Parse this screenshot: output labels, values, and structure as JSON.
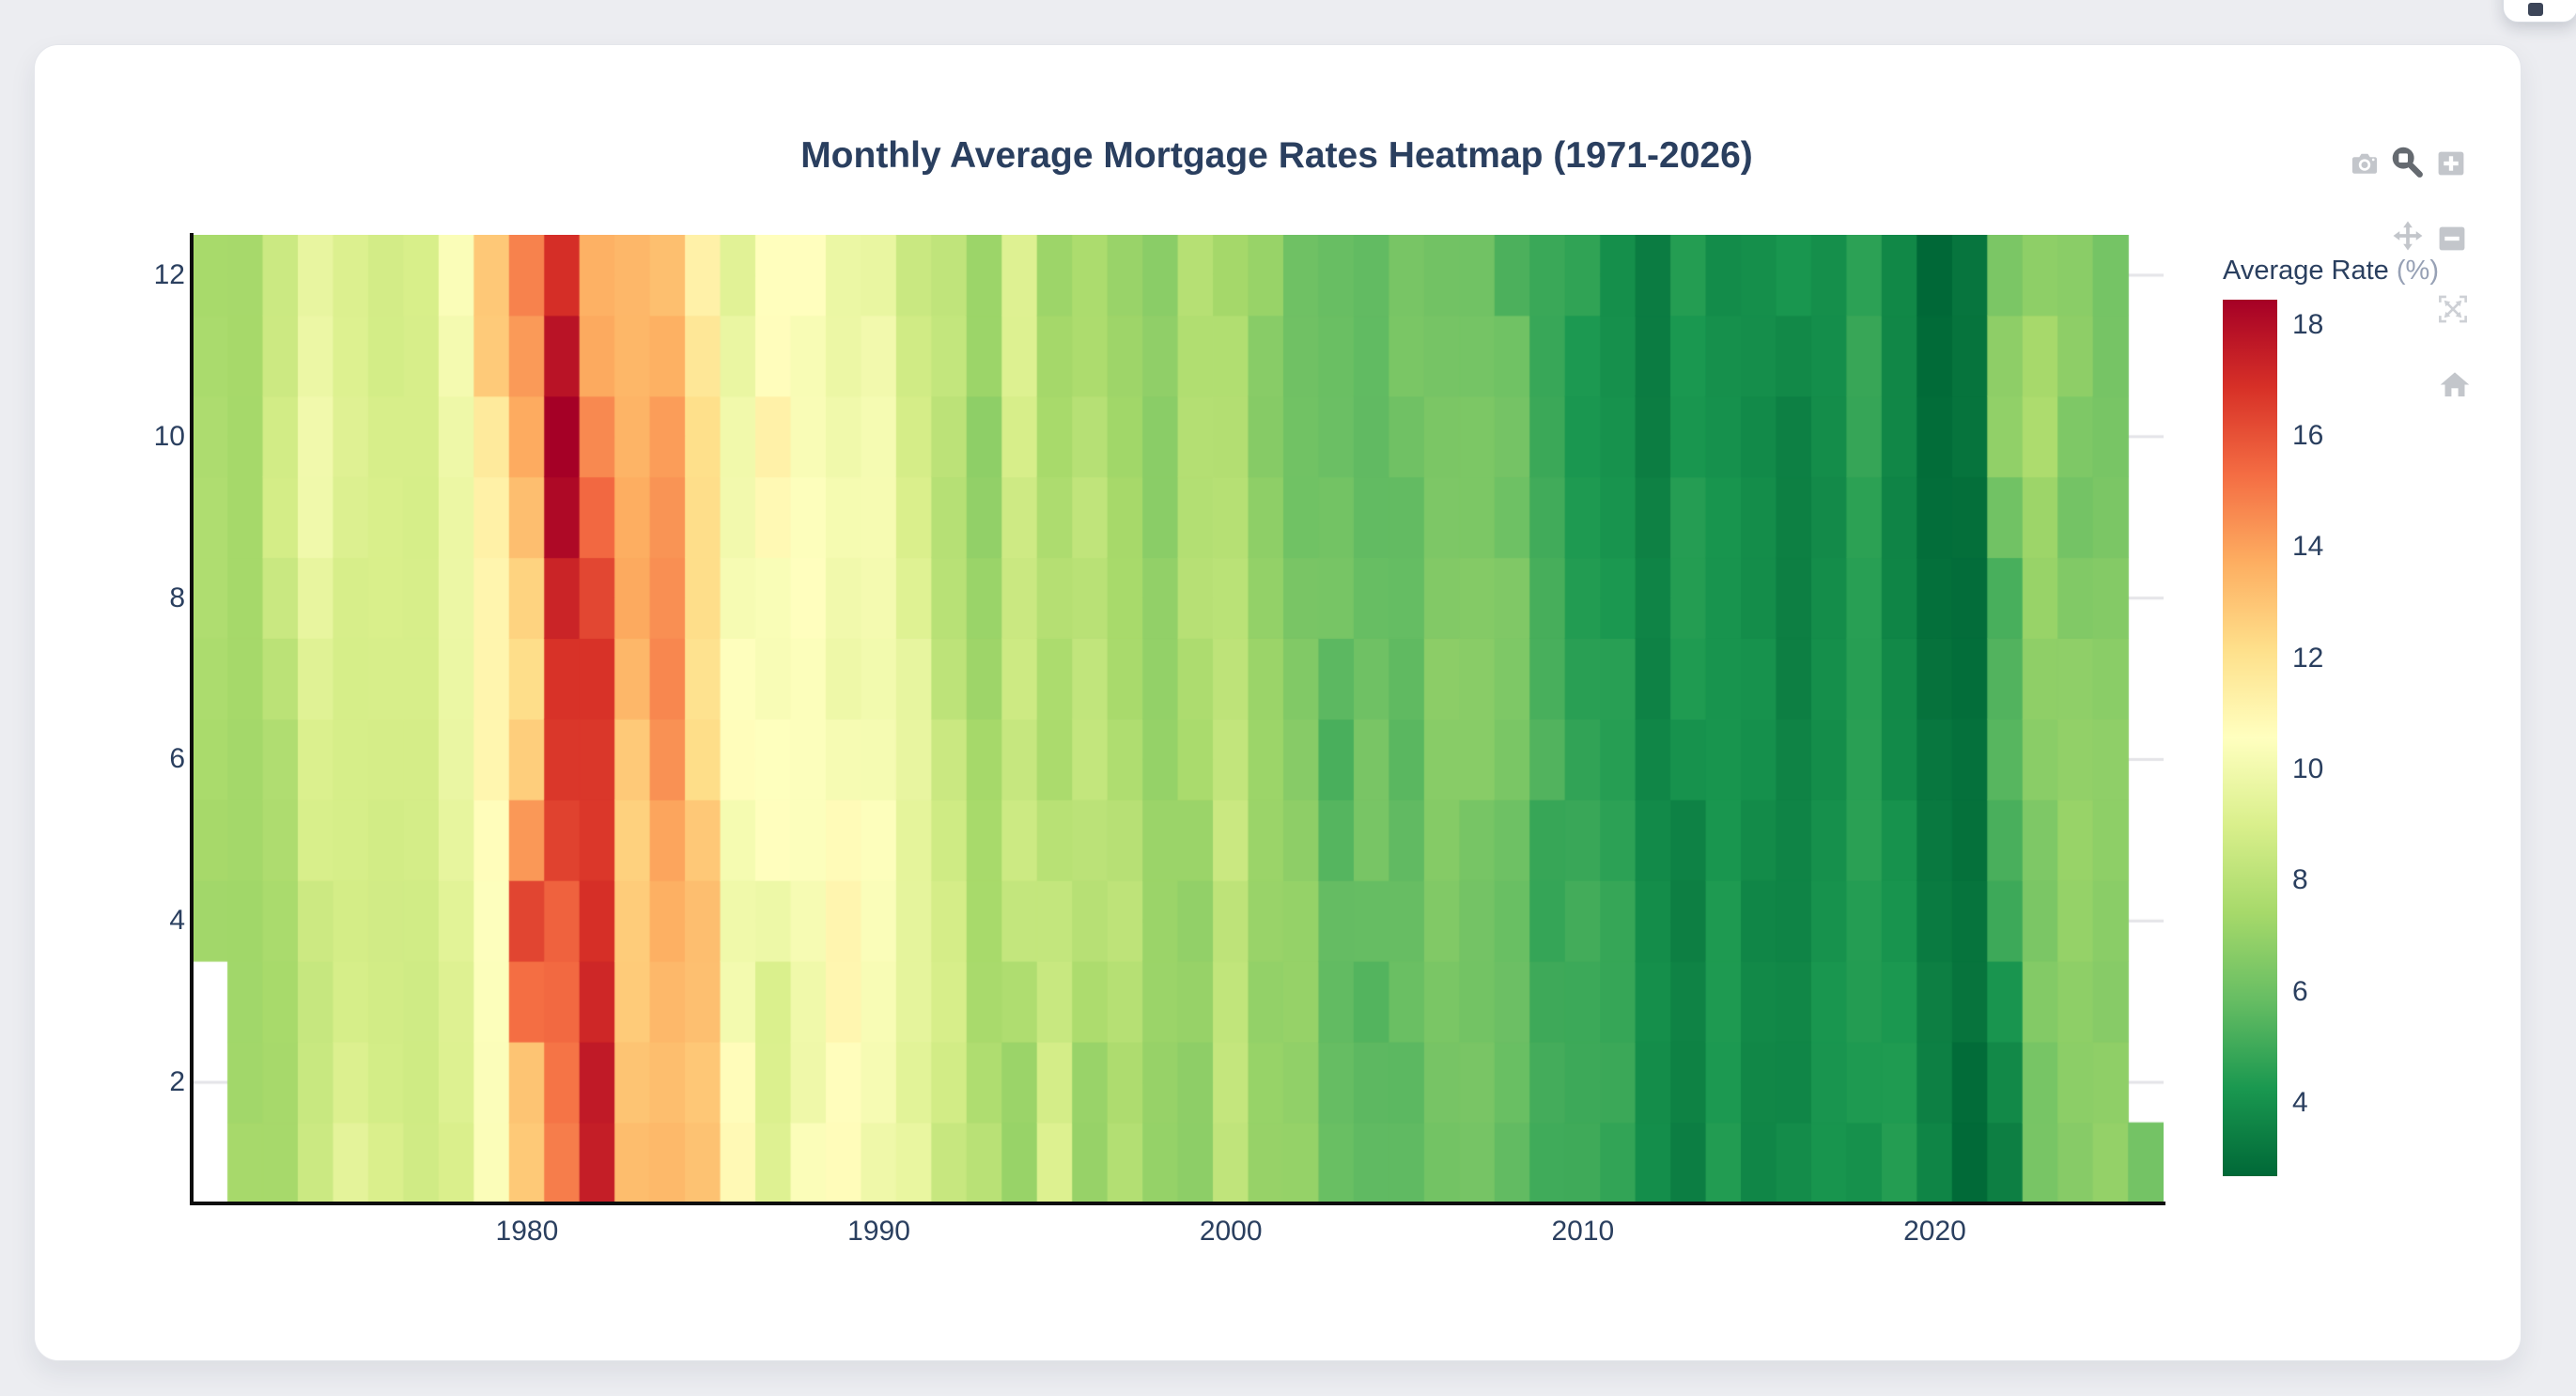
{
  "header": {
    "title": "Monthly Average Mortgage Rates Heatmap (1971-2026)"
  },
  "modebar": {
    "buttons": [
      "download-png",
      "zoom",
      "zoom-in",
      "pan",
      "zoom-out",
      "autoscale",
      "reset-axes-home"
    ],
    "inactive_color": "#c3c6cb",
    "active_color": "#656a70"
  },
  "floating_button": {
    "label": ""
  },
  "chart_data": {
    "type": "heatmap",
    "title": "Monthly Average Mortgage Rates Heatmap (1971-2026)",
    "xlabel": "",
    "ylabel": "",
    "x_year_min": 1971,
    "x_year_max": 2026,
    "y_month_min": 1,
    "y_month_max": 12,
    "xticks": [
      1980,
      1990,
      2000,
      2010,
      2020
    ],
    "yticks": [
      2,
      4,
      6,
      8,
      10,
      12
    ],
    "zmin": 2.68,
    "zmax": 18.45,
    "grid_color": "#e4e4e8",
    "axis_line_color": "#0d0d0d",
    "colorscale": [
      [
        0.0,
        "#006837"
      ],
      [
        0.1,
        "#1a9850"
      ],
      [
        0.2,
        "#66bd63"
      ],
      [
        0.3,
        "#a6d96a"
      ],
      [
        0.4,
        "#d9ef8b"
      ],
      [
        0.5,
        "#ffffbf"
      ],
      [
        0.6,
        "#fee08b"
      ],
      [
        0.7,
        "#fdae61"
      ],
      [
        0.8,
        "#f46d43"
      ],
      [
        0.9,
        "#d73027"
      ],
      [
        1.0,
        "#a50026"
      ]
    ],
    "colorbar": {
      "title": "Average Rate",
      "title_suffix": " (%)",
      "ticks": [
        4,
        6,
        8,
        10,
        12,
        14,
        16,
        18
      ]
    },
    "series": [
      {
        "year": 1971,
        "values": [
          null,
          null,
          null,
          7.31,
          7.43,
          7.53,
          7.6,
          7.7,
          7.69,
          7.63,
          7.55,
          7.48
        ]
      },
      {
        "year": 1972,
        "values": [
          7.44,
          7.32,
          7.3,
          7.29,
          7.37,
          7.37,
          7.4,
          7.4,
          7.42,
          7.42,
          7.43,
          7.44
        ]
      },
      {
        "year": 1973,
        "values": [
          7.44,
          7.44,
          7.46,
          7.54,
          7.65,
          7.73,
          8.05,
          8.5,
          8.82,
          8.77,
          8.58,
          8.54
        ]
      },
      {
        "year": 1974,
        "values": [
          8.54,
          8.46,
          8.41,
          8.58,
          8.97,
          9.09,
          9.28,
          9.59,
          9.96,
          9.98,
          9.79,
          9.62
        ]
      },
      {
        "year": 1975,
        "values": [
          9.43,
          9.1,
          8.89,
          8.82,
          8.91,
          8.89,
          8.89,
          8.94,
          9.13,
          9.22,
          9.15,
          9.1
        ]
      },
      {
        "year": 1976,
        "values": [
          9.02,
          8.81,
          8.76,
          8.73,
          8.77,
          8.85,
          8.93,
          8.98,
          8.98,
          8.93,
          8.81,
          8.79
        ]
      },
      {
        "year": 1977,
        "values": [
          8.72,
          8.67,
          8.69,
          8.75,
          8.83,
          8.86,
          8.94,
          8.94,
          8.9,
          8.92,
          8.92,
          8.96
        ]
      },
      {
        "year": 1978,
        "values": [
          9.02,
          9.16,
          9.2,
          9.36,
          9.57,
          9.71,
          9.74,
          9.79,
          9.76,
          9.86,
          10.11,
          10.35
        ]
      },
      {
        "year": 1979,
        "values": [
          10.39,
          10.41,
          10.43,
          10.5,
          10.69,
          11.04,
          11.09,
          11.09,
          11.3,
          11.64,
          12.83,
          12.9
        ]
      },
      {
        "year": 1980,
        "values": [
          12.88,
          13.04,
          15.28,
          16.33,
          14.26,
          12.71,
          12.19,
          12.56,
          13.2,
          13.79,
          14.21,
          14.79
        ]
      },
      {
        "year": 1981,
        "values": [
          14.9,
          15.13,
          15.4,
          15.58,
          16.4,
          16.7,
          16.83,
          17.28,
          18.16,
          18.45,
          17.82,
          16.95
        ]
      },
      {
        "year": 1982,
        "values": [
          17.48,
          17.6,
          17.16,
          16.89,
          16.68,
          16.7,
          16.82,
          16.27,
          15.43,
          14.61,
          13.82,
          13.62
        ]
      },
      {
        "year": 1983,
        "values": [
          13.25,
          13.04,
          12.8,
          12.78,
          12.63,
          12.87,
          13.43,
          13.81,
          13.73,
          13.54,
          13.44,
          13.42
        ]
      },
      {
        "year": 1984,
        "values": [
          13.37,
          13.23,
          13.39,
          13.65,
          13.94,
          14.42,
          14.67,
          14.47,
          14.35,
          14.13,
          13.64,
          13.18
        ]
      },
      {
        "year": 1985,
        "values": [
          13.08,
          12.92,
          13.17,
          13.2,
          12.91,
          12.22,
          12.03,
          12.19,
          12.19,
          12.14,
          11.78,
          11.26
        ]
      },
      {
        "year": 1986,
        "values": [
          10.88,
          10.71,
          10.08,
          9.94,
          10.14,
          10.68,
          10.51,
          10.2,
          10.01,
          9.97,
          9.7,
          9.31
        ]
      },
      {
        "year": 1987,
        "values": [
          9.2,
          9.08,
          9.04,
          9.83,
          10.6,
          10.54,
          10.28,
          10.33,
          10.89,
          11.26,
          10.65,
          10.64
        ]
      },
      {
        "year": 1988,
        "values": [
          10.38,
          9.89,
          9.93,
          10.2,
          10.46,
          10.46,
          10.43,
          10.6,
          10.48,
          10.3,
          10.27,
          10.61
        ]
      },
      {
        "year": 1989,
        "values": [
          10.73,
          10.65,
          11.03,
          11.05,
          10.77,
          10.2,
          9.88,
          9.99,
          10.13,
          9.95,
          9.77,
          9.74
        ]
      },
      {
        "year": 1990,
        "values": [
          9.9,
          10.2,
          10.27,
          10.37,
          10.48,
          10.16,
          10.04,
          10.1,
          10.18,
          10.17,
          10.01,
          9.67
        ]
      },
      {
        "year": 1991,
        "values": [
          9.64,
          9.37,
          9.5,
          9.49,
          9.47,
          9.62,
          9.58,
          9.24,
          9.01,
          8.86,
          8.71,
          8.5
        ]
      },
      {
        "year": 1992,
        "values": [
          8.43,
          8.76,
          8.94,
          8.85,
          8.67,
          8.51,
          8.13,
          7.98,
          7.92,
          8.09,
          8.31,
          8.22
        ]
      },
      {
        "year": 1993,
        "values": [
          7.99,
          7.68,
          7.5,
          7.47,
          7.47,
          7.42,
          7.21,
          7.11,
          6.92,
          6.83,
          7.16,
          7.17
        ]
      },
      {
        "year": 1994,
        "values": [
          7.07,
          7.15,
          7.68,
          8.32,
          8.6,
          8.4,
          8.61,
          8.51,
          8.64,
          8.93,
          9.17,
          9.2
        ]
      },
      {
        "year": 1995,
        "values": [
          9.15,
          8.83,
          8.46,
          8.32,
          7.96,
          7.57,
          7.61,
          7.86,
          7.64,
          7.48,
          7.38,
          7.2
        ]
      },
      {
        "year": 1996,
        "values": [
          7.03,
          7.08,
          7.62,
          7.93,
          8.07,
          8.32,
          8.25,
          8.0,
          8.23,
          7.92,
          7.62,
          7.6
        ]
      },
      {
        "year": 1997,
        "values": [
          7.82,
          7.65,
          7.9,
          8.14,
          7.94,
          7.69,
          7.5,
          7.48,
          7.43,
          7.29,
          7.21,
          7.1
        ]
      },
      {
        "year": 1998,
        "values": [
          6.99,
          7.04,
          7.13,
          7.14,
          7.14,
          7.0,
          6.95,
          6.92,
          6.72,
          6.71,
          6.87,
          6.72
        ]
      },
      {
        "year": 1999,
        "values": [
          6.79,
          6.81,
          7.04,
          6.92,
          7.15,
          7.55,
          7.63,
          7.94,
          7.82,
          7.85,
          7.74,
          7.91
        ]
      },
      {
        "year": 2000,
        "values": [
          8.21,
          8.33,
          8.24,
          8.15,
          8.52,
          8.29,
          8.15,
          8.03,
          7.91,
          7.8,
          7.75,
          7.38
        ]
      },
      {
        "year": 2001,
        "values": [
          7.03,
          7.05,
          6.95,
          7.08,
          7.15,
          7.16,
          7.13,
          6.95,
          6.82,
          6.62,
          6.66,
          7.07
        ]
      },
      {
        "year": 2002,
        "values": [
          7.0,
          6.89,
          7.01,
          6.99,
          6.81,
          6.65,
          6.49,
          6.29,
          6.09,
          6.11,
          6.07,
          6.05
        ]
      },
      {
        "year": 2003,
        "values": [
          5.92,
          5.84,
          5.75,
          5.81,
          5.48,
          5.23,
          5.63,
          6.26,
          6.15,
          5.95,
          5.93,
          5.88
        ]
      },
      {
        "year": 2004,
        "values": [
          5.71,
          5.64,
          5.45,
          5.83,
          6.27,
          6.29,
          6.06,
          5.87,
          5.75,
          5.72,
          5.73,
          5.75
        ]
      },
      {
        "year": 2005,
        "values": [
          5.71,
          5.63,
          5.93,
          5.86,
          5.72,
          5.58,
          5.7,
          5.82,
          5.77,
          6.07,
          6.33,
          6.27
        ]
      },
      {
        "year": 2006,
        "values": [
          6.15,
          6.25,
          6.32,
          6.51,
          6.6,
          6.68,
          6.76,
          6.52,
          6.4,
          6.36,
          6.24,
          6.14
        ]
      },
      {
        "year": 2007,
        "values": [
          6.22,
          6.29,
          6.16,
          6.18,
          6.26,
          6.66,
          6.7,
          6.57,
          6.38,
          6.38,
          6.21,
          6.1
        ]
      },
      {
        "year": 2008,
        "values": [
          5.76,
          5.92,
          5.97,
          5.92,
          6.04,
          6.32,
          6.43,
          6.48,
          6.04,
          6.2,
          6.09,
          5.29
        ]
      },
      {
        "year": 2009,
        "values": [
          5.05,
          5.13,
          5.0,
          4.81,
          4.86,
          5.42,
          5.22,
          5.19,
          5.06,
          4.95,
          4.88,
          4.93
        ]
      },
      {
        "year": 2010,
        "values": [
          5.03,
          4.99,
          4.97,
          5.1,
          4.89,
          4.74,
          4.56,
          4.43,
          4.35,
          4.23,
          4.3,
          4.71
        ]
      },
      {
        "year": 2011,
        "values": [
          4.76,
          4.95,
          4.84,
          4.84,
          4.64,
          4.51,
          4.55,
          4.27,
          4.11,
          4.07,
          3.99,
          3.96
        ]
      },
      {
        "year": 2012,
        "values": [
          3.92,
          3.89,
          3.95,
          3.91,
          3.8,
          3.68,
          3.55,
          3.6,
          3.5,
          3.38,
          3.35,
          3.35
        ]
      },
      {
        "year": 2013,
        "values": [
          3.41,
          3.53,
          3.57,
          3.45,
          3.54,
          4.07,
          4.37,
          4.46,
          4.49,
          4.19,
          4.26,
          4.46
        ]
      },
      {
        "year": 2014,
        "values": [
          4.43,
          4.3,
          4.34,
          4.34,
          4.19,
          4.16,
          4.13,
          4.12,
          4.16,
          4.04,
          4.0,
          3.86
        ]
      },
      {
        "year": 2015,
        "values": [
          3.67,
          3.71,
          3.77,
          3.67,
          3.84,
          3.98,
          4.05,
          3.91,
          3.89,
          3.8,
          3.94,
          3.96
        ]
      },
      {
        "year": 2016,
        "values": [
          3.87,
          3.66,
          3.69,
          3.61,
          3.6,
          3.57,
          3.44,
          3.44,
          3.46,
          3.47,
          3.77,
          4.2
        ]
      },
      {
        "year": 2017,
        "values": [
          4.15,
          4.17,
          4.2,
          4.05,
          4.01,
          3.9,
          3.97,
          3.88,
          3.81,
          3.9,
          3.92,
          3.95
        ]
      },
      {
        "year": 2018,
        "values": [
          4.03,
          4.33,
          4.44,
          4.47,
          4.59,
          4.57,
          4.53,
          4.55,
          4.63,
          4.83,
          4.87,
          4.64
        ]
      },
      {
        "year": 2019,
        "values": [
          4.46,
          4.37,
          4.27,
          4.14,
          4.07,
          3.8,
          3.77,
          3.62,
          3.61,
          3.69,
          3.7,
          3.72
        ]
      },
      {
        "year": 2020,
        "values": [
          3.62,
          3.47,
          3.45,
          3.31,
          3.23,
          3.16,
          3.02,
          2.94,
          2.89,
          2.83,
          2.77,
          2.68
        ]
      },
      {
        "year": 2021,
        "values": [
          2.74,
          2.81,
          3.08,
          3.06,
          2.96,
          2.98,
          2.87,
          2.84,
          2.9,
          3.07,
          3.07,
          3.1
        ]
      },
      {
        "year": 2022,
        "values": [
          3.45,
          3.76,
          4.17,
          4.98,
          5.23,
          5.52,
          5.41,
          5.22,
          6.11,
          6.9,
          6.81,
          6.36
        ]
      },
      {
        "year": 2023,
        "values": [
          6.27,
          6.26,
          6.54,
          6.34,
          6.43,
          6.71,
          6.84,
          7.07,
          7.2,
          7.62,
          7.44,
          6.82
        ]
      },
      {
        "year": 2024,
        "values": [
          6.64,
          6.78,
          6.82,
          6.99,
          7.06,
          6.92,
          6.85,
          6.5,
          6.18,
          6.43,
          6.81,
          6.72
        ]
      },
      {
        "year": 2025,
        "values": [
          6.96,
          6.84,
          6.65,
          6.73,
          6.82,
          6.85,
          6.72,
          6.58,
          6.35,
          6.27,
          6.24,
          6.21
        ]
      },
      {
        "year": 2026,
        "values": [
          6.19,
          null,
          null,
          null,
          null,
          null,
          null,
          null,
          null,
          null,
          null,
          null
        ]
      }
    ]
  }
}
